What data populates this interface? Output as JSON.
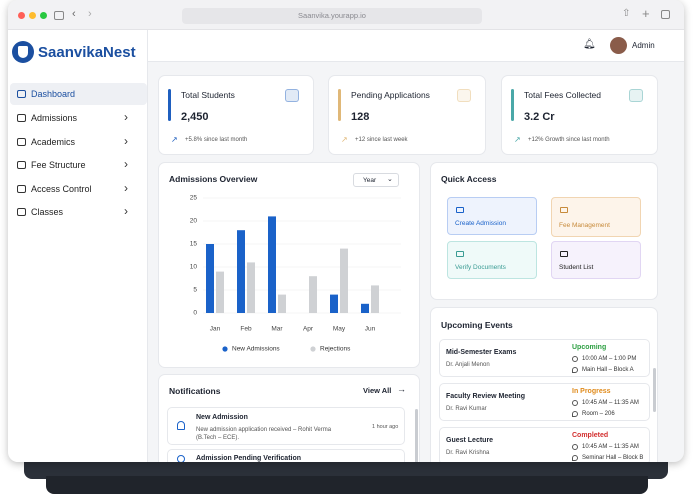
{
  "browser": {
    "url": "Saanvika.yourapp.io"
  },
  "brand": "SaanvikaNest",
  "user": "Admin",
  "nav": [
    "Dashboard",
    "Admissions",
    "Academics",
    "Fee Structure",
    "Access Control",
    "Classes"
  ],
  "stats": [
    {
      "title": "Total Students",
      "value": "2,450",
      "note": "+5.8% since last month"
    },
    {
      "title": "Pending Applications",
      "value": "128",
      "note": "+12 since last week"
    },
    {
      "title": "Total Fees Collected",
      "value": "3.2 Cr",
      "note": "+12% Growth since last month"
    }
  ],
  "chart": {
    "type": "bar",
    "title": "Admissions Overview",
    "filter": "Year",
    "categories": [
      "Jan",
      "Feb",
      "Mar",
      "Apr",
      "May",
      "Jun"
    ],
    "series": [
      {
        "name": "New Admissions",
        "color": "#1a62c9",
        "values": [
          15,
          18,
          21,
          0,
          4,
          2
        ]
      },
      {
        "name": "Rejections",
        "color": "#cfd1d4",
        "values": [
          9,
          11,
          4,
          8,
          14,
          6
        ]
      }
    ],
    "ylim": [
      0,
      25
    ],
    "yticks": [
      0,
      5,
      10,
      15,
      20,
      25
    ]
  },
  "quick_access": {
    "title": "Quick Access",
    "items": [
      "Create Admission",
      "Fee Management",
      "Verify Documents",
      "Student List"
    ]
  },
  "events": {
    "title": "Upcoming Events",
    "items": [
      {
        "name": "Mid-Semester Exams",
        "by": "Dr. Anjali Menon",
        "status": "Upcoming",
        "time": "10:00 AM – 1:00 PM",
        "place": "Main Hall – Block A"
      },
      {
        "name": "Faculty Review Meeting",
        "by": "Dr. Ravi Kumar",
        "status": "In Progress",
        "time": "10:45 AM – 11:35 AM",
        "place": "Room – 206"
      },
      {
        "name": "Guest Lecture",
        "by": "Dr. Ravi Krishna",
        "status": "Completed",
        "time": "10:45 AM – 11:35 AM",
        "place": "Seminar Hall – Block B"
      }
    ]
  },
  "notifications": {
    "title": "Notifications",
    "view_all": "View All",
    "items": [
      {
        "title": "New Admission",
        "text": "New admission application received – Rohit Verma (B.Tech – ECE).",
        "time": "1 hour ago"
      },
      {
        "title": "Admission Pending Verification"
      }
    ]
  }
}
